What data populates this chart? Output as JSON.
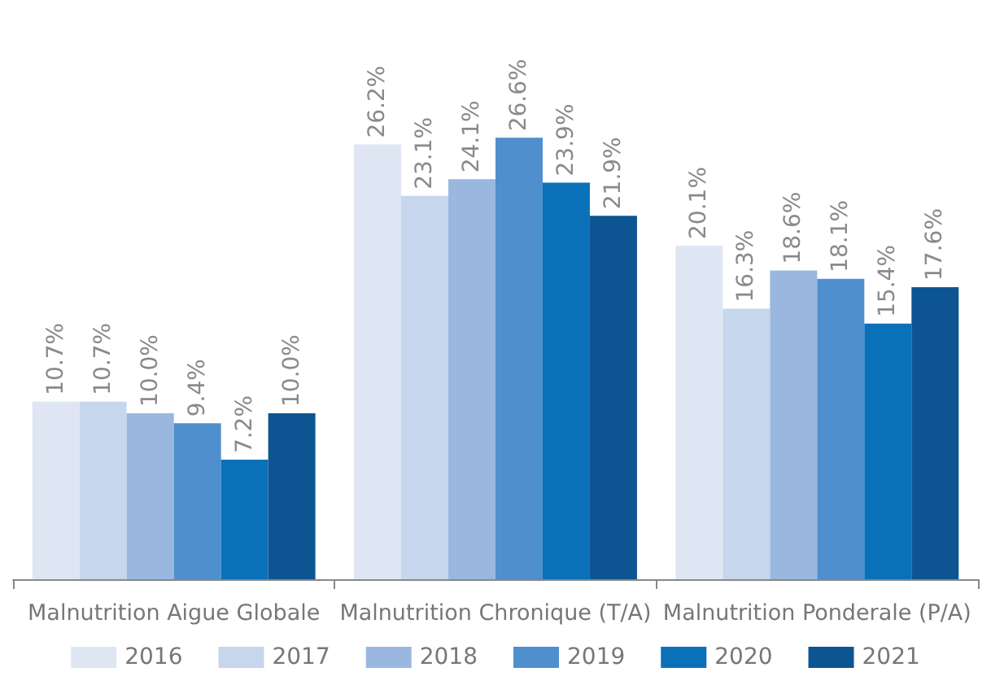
{
  "chart_data": {
    "type": "bar",
    "categories": [
      "Malnutrition Aigue Globale",
      "Malnutrition Chronique (T/A)",
      "Malnutrition Ponderale (P/A)"
    ],
    "series": [
      {
        "name": "2016",
        "color": "#dfe6f3",
        "values": [
          10.7,
          26.2,
          20.1
        ],
        "value_labels": [
          "10.7%",
          "26.2%",
          "20.1%"
        ]
      },
      {
        "name": "2017",
        "color": "#c6d6ec",
        "values": [
          10.7,
          23.1,
          16.3
        ],
        "value_labels": [
          "10.7%",
          "23.1%",
          "16.3%"
        ]
      },
      {
        "name": "2018",
        "color": "#9ab8df",
        "values": [
          10.0,
          24.1,
          18.6
        ],
        "value_labels": [
          "10.0%",
          "24.1%",
          "18.6%"
        ]
      },
      {
        "name": "2019",
        "color": "#4f8fcd",
        "values": [
          9.4,
          26.6,
          18.1
        ],
        "value_labels": [
          "9.4%",
          "26.6%",
          "18.1%"
        ]
      },
      {
        "name": "2020",
        "color": "#0a71b9",
        "values": [
          7.2,
          23.9,
          15.4
        ],
        "value_labels": [
          "7.2%",
          "23.9%",
          "15.4%"
        ]
      },
      {
        "name": "2021",
        "color": "#0d5592",
        "values": [
          10.0,
          21.9,
          17.6
        ],
        "value_labels": [
          "10.0%",
          "21.9%",
          "17.6%"
        ]
      }
    ],
    "legend": "bottom",
    "grid": false,
    "tick_labels": "x"
  }
}
